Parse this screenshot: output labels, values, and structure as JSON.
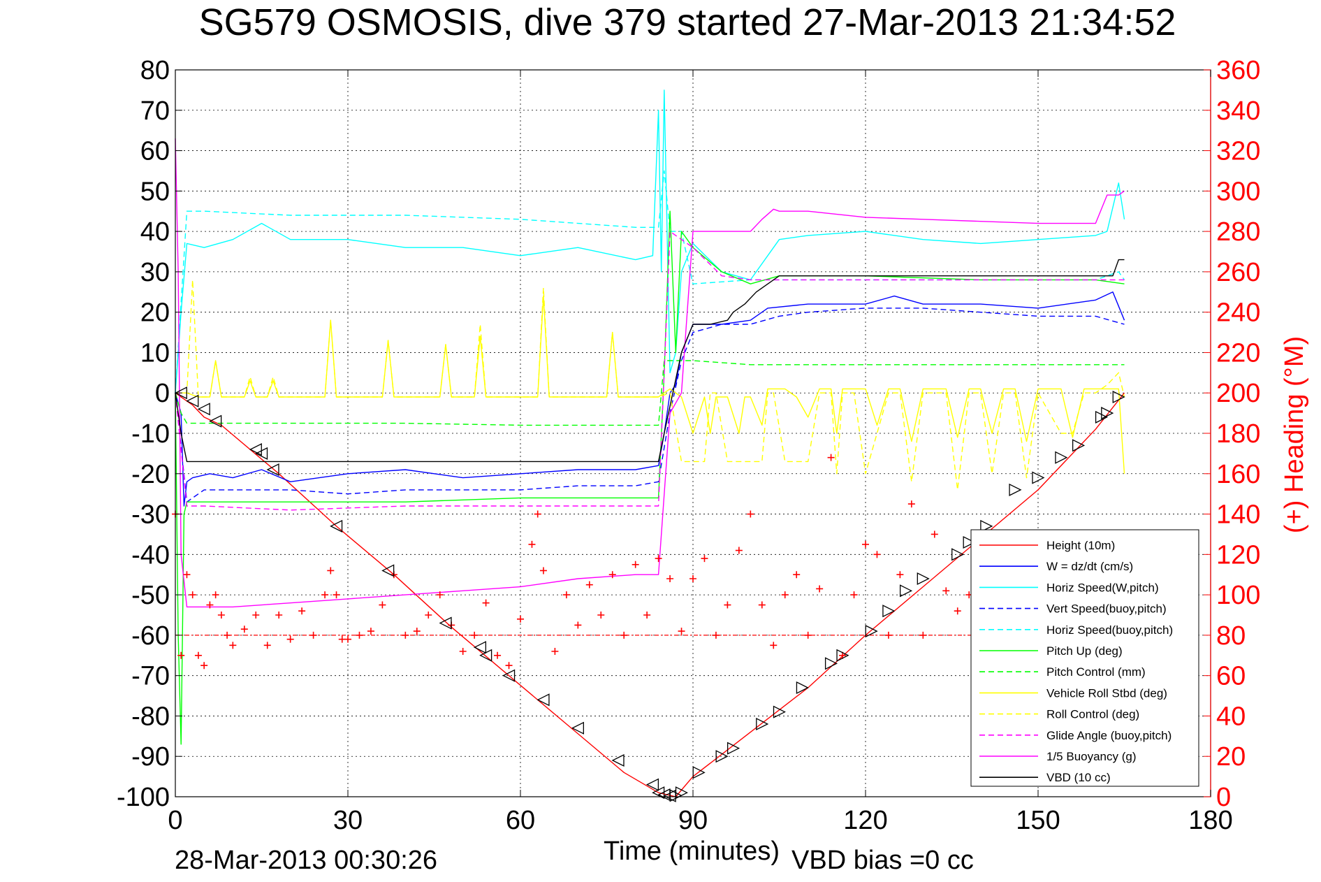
{
  "chart_data": {
    "type": "line",
    "title": "SG579 OSMOSIS, dive 379 started 27-Mar-2013 21:34:52",
    "xlabel": "Time (minutes)",
    "ylabel_right": "(+) Heading (°M)",
    "footer_left": "28-Mar-2013 00:30:26",
    "footer_right": "VBD bias =0 cc",
    "xlim": [
      0,
      180
    ],
    "ylim": [
      -100,
      80
    ],
    "ylim_right": [
      0,
      360
    ],
    "x_ticks": [
      0,
      30,
      60,
      90,
      120,
      150,
      180
    ],
    "y_ticks": [
      -100,
      -90,
      -80,
      -70,
      -60,
      -50,
      -40,
      -30,
      -20,
      -10,
      0,
      10,
      20,
      30,
      40,
      50,
      60,
      70,
      80
    ],
    "y_ticks_right": [
      0,
      20,
      40,
      60,
      80,
      100,
      120,
      140,
      160,
      180,
      200,
      220,
      240,
      260,
      280,
      300,
      320,
      340,
      360
    ],
    "grid": true,
    "legend_position": "bottom-right",
    "colors": {
      "red": "#ff0000",
      "blue": "#0000ff",
      "cyan": "#00ffff",
      "green": "#00ff00",
      "yellow": "#ffff00",
      "magenta": "#ff00ff",
      "black": "#000000"
    },
    "series": [
      {
        "name": "Height (10m)",
        "color": "#ff0000",
        "style": "solid",
        "x": [
          0,
          1,
          3,
          5,
          8,
          18,
          28,
          38,
          48,
          58,
          68,
          78,
          84,
          87,
          90,
          100,
          110,
          120,
          130,
          140,
          150,
          160,
          165
        ],
        "y": [
          0,
          -1,
          -3,
          -6,
          -8,
          -20,
          -33,
          -45,
          -58,
          -70,
          -82,
          -94,
          -99,
          -100,
          -95,
          -84,
          -73,
          -60,
          -48,
          -36,
          -24,
          -9,
          0
        ]
      },
      {
        "name": "W = dz/dt (cm/s)",
        "color": "#0000ff",
        "style": "solid",
        "x": [
          0,
          1,
          1.5,
          2,
          3,
          6,
          10,
          15,
          20,
          30,
          40,
          50,
          60,
          70,
          80,
          84,
          85,
          86,
          87,
          88,
          90,
          95,
          100,
          103,
          110,
          120,
          125,
          130,
          140,
          150,
          160,
          163,
          165
        ],
        "y": [
          0,
          -5,
          -28,
          -22,
          -21,
          -20,
          -21,
          -19,
          -22,
          -20,
          -19,
          -21,
          -20,
          -19,
          -19,
          -18,
          -10,
          0,
          2,
          10,
          17,
          17,
          18,
          21,
          22,
          22,
          24,
          22,
          22,
          21,
          23,
          25,
          18
        ]
      },
      {
        "name": "Horiz Speed(W,pitch)",
        "color": "#00ffff",
        "style": "solid",
        "x": [
          0,
          1,
          2,
          5,
          10,
          15,
          20,
          30,
          40,
          50,
          60,
          70,
          80,
          83,
          84,
          84.5,
          85,
          86,
          87,
          88,
          90,
          95,
          100,
          105,
          110,
          120,
          130,
          140,
          150,
          160,
          162,
          164,
          165
        ],
        "y": [
          0,
          20,
          37,
          36,
          38,
          42,
          38,
          38,
          36,
          36,
          34,
          36,
          33,
          34,
          70,
          30,
          75,
          5,
          10,
          30,
          37,
          30,
          28,
          38,
          39,
          40,
          38,
          37,
          38,
          39,
          40,
          52,
          43
        ]
      },
      {
        "name": "Vert Speed(buoy,pitch)",
        "color": "#0000ff",
        "style": "dashed",
        "x": [
          0,
          2,
          5,
          10,
          20,
          30,
          40,
          50,
          60,
          70,
          80,
          84,
          86,
          88,
          90,
          95,
          100,
          105,
          110,
          120,
          130,
          140,
          150,
          160,
          165
        ],
        "y": [
          0,
          -27,
          -24,
          -24,
          -24,
          -25,
          -24,
          -24,
          -24,
          -23,
          -23,
          -22,
          -5,
          8,
          15,
          17,
          17,
          19,
          20,
          21,
          21,
          20,
          19,
          19,
          17
        ]
      },
      {
        "name": "Horiz Speed(buoy,pitch)",
        "color": "#00ffff",
        "style": "dashed",
        "x": [
          0,
          2,
          5,
          20,
          40,
          60,
          80,
          84,
          85,
          86,
          88,
          90,
          100,
          110,
          120,
          140,
          160,
          164,
          165
        ],
        "y": [
          0,
          45,
          45,
          44,
          44,
          43,
          41,
          41,
          55,
          40,
          40,
          27,
          28,
          28,
          28,
          28,
          28,
          30,
          28
        ]
      },
      {
        "name": "Pitch Up (deg)",
        "color": "#00ff00",
        "style": "solid",
        "x": [
          0,
          0.5,
          1,
          1.5,
          2,
          5,
          20,
          40,
          60,
          80,
          84,
          85,
          86,
          87,
          88,
          90,
          95,
          100,
          105,
          120,
          140,
          160,
          165
        ],
        "y": [
          0,
          -60,
          -87,
          -30,
          -27,
          -27,
          -27,
          -27,
          -26,
          -26,
          -26,
          5,
          45,
          10,
          40,
          36,
          30,
          27,
          29,
          29,
          28,
          28,
          27
        ]
      },
      {
        "name": "Pitch Control (mm)",
        "color": "#00ff00",
        "style": "dashed",
        "x": [
          0,
          1,
          2,
          5,
          20,
          40,
          60,
          80,
          84,
          85,
          88,
          90,
          100,
          110,
          120,
          140,
          160,
          165
        ],
        "y": [
          0,
          -5,
          -7.5,
          -7.5,
          -7.5,
          -7.5,
          -8,
          -8,
          -8,
          8,
          8,
          8,
          7,
          7,
          7,
          7,
          7,
          7
        ]
      },
      {
        "name": "Vehicle Roll Stbd (deg)",
        "color": "#ffff00",
        "style": "solid",
        "x": [
          0,
          2,
          4,
          6,
          7,
          8,
          10,
          12,
          13,
          14,
          16,
          17,
          18,
          20,
          26,
          27,
          28,
          30,
          36,
          37,
          38,
          40,
          46,
          47,
          48,
          50,
          52,
          53,
          54,
          56,
          58,
          60,
          63,
          64,
          65,
          67,
          70,
          72,
          75,
          76,
          77,
          80,
          84,
          85,
          86,
          88,
          90,
          92,
          93,
          94,
          96,
          98,
          99,
          100,
          102,
          103,
          104,
          106,
          108,
          110,
          112,
          114,
          115,
          116,
          118,
          120,
          122,
          124,
          126,
          128,
          130,
          132,
          134,
          136,
          138,
          140,
          142,
          144,
          146,
          148,
          150,
          152,
          154,
          156,
          158,
          160,
          162,
          164,
          165
        ],
        "y": [
          0,
          0,
          -1,
          -1,
          8,
          -1,
          -1,
          -1,
          3,
          -1,
          -1,
          3,
          -1,
          -1,
          -1,
          18,
          -1,
          -1,
          -1,
          13,
          -1,
          -1,
          -1,
          12,
          -1,
          -1,
          -1,
          14,
          -1,
          -1,
          -1,
          -1,
          -1,
          24,
          -1,
          -1,
          -1,
          -1,
          -1,
          15,
          -1,
          -1,
          -1,
          0,
          1,
          -1,
          -10,
          -1,
          -10,
          -1,
          -1,
          -10,
          -1,
          -1,
          -8,
          1,
          1,
          1,
          -1,
          -6,
          1,
          1,
          -10,
          1,
          1,
          1,
          -8,
          1,
          1,
          -12,
          1,
          1,
          1,
          -11,
          1,
          1,
          -10,
          1,
          1,
          -12,
          1,
          1,
          1,
          -11,
          1,
          1,
          1,
          1,
          -20
        ]
      },
      {
        "name": "Roll Control (deg)",
        "color": "#ffff00",
        "style": "dashed",
        "x": [
          0,
          2,
          3,
          4,
          6,
          7,
          8,
          10,
          12,
          13,
          14,
          16,
          17,
          18,
          20,
          26,
          27,
          28,
          30,
          36,
          37,
          38,
          40,
          46,
          47,
          48,
          50,
          52,
          53,
          54,
          56,
          60,
          63,
          64,
          65,
          70,
          75,
          76,
          77,
          80,
          84,
          86,
          88,
          90,
          92,
          93,
          94,
          96,
          98,
          100,
          102,
          103,
          104,
          106,
          108,
          110,
          112,
          114,
          115,
          116,
          118,
          120,
          124,
          126,
          128,
          130,
          134,
          136,
          138,
          140,
          142,
          144,
          146,
          148,
          150,
          154,
          156,
          158,
          160,
          162,
          164,
          165
        ],
        "y": [
          0,
          0,
          28,
          -1,
          -1,
          8,
          -1,
          -1,
          -1,
          4,
          -1,
          -1,
          4,
          -1,
          -1,
          -1,
          18,
          -1,
          -1,
          -1,
          13,
          -1,
          -1,
          -1,
          12,
          -1,
          -1,
          -1,
          17,
          -1,
          -1,
          -1,
          -1,
          26,
          -1,
          -1,
          -1,
          15,
          -1,
          -1,
          -1,
          0,
          -17,
          -17,
          -17,
          0,
          0,
          -17,
          -17,
          -17,
          -17,
          0,
          0,
          -17,
          -17,
          -17,
          0,
          0,
          -20,
          0,
          0,
          -20,
          0,
          0,
          -22,
          0,
          0,
          -24,
          0,
          0,
          -20,
          0,
          0,
          -21,
          0,
          -10,
          -10,
          0,
          0,
          2,
          5,
          -1
        ]
      },
      {
        "name": "Glide Angle (buoy,pitch)",
        "color": "#ff00ff",
        "style": "dashed",
        "x": [
          0,
          2,
          5,
          20,
          40,
          60,
          80,
          84,
          85,
          86,
          88,
          90,
          95,
          100,
          110,
          120,
          140,
          160,
          165
        ],
        "y": [
          0,
          -28,
          -28,
          -29,
          -28,
          -28,
          -28,
          -28,
          5,
          40,
          38,
          36,
          29,
          28,
          28,
          28,
          28,
          28,
          28
        ]
      },
      {
        "name": "1/5 Buoyancy (g)",
        "color": "#ff00ff",
        "style": "solid",
        "x": [
          0,
          0.5,
          1,
          2,
          3,
          10,
          20,
          30,
          40,
          50,
          60,
          70,
          80,
          84,
          86,
          88,
          90,
          100,
          102,
          104,
          105,
          110,
          120,
          130,
          140,
          150,
          160,
          162,
          164,
          165
        ],
        "y": [
          63,
          30,
          -40,
          -53,
          -53,
          -53,
          -52,
          -51,
          -50,
          -49,
          -48,
          -46,
          -45,
          -45,
          -5,
          0,
          40,
          40,
          43,
          45.5,
          45,
          45,
          43.5,
          43,
          42.5,
          42,
          42,
          49,
          49,
          50
        ]
      },
      {
        "name": "VBD (10 cc)",
        "color": "#000000",
        "style": "solid",
        "x": [
          0,
          1,
          2,
          5,
          20,
          40,
          60,
          80,
          84,
          85,
          88,
          90,
          93,
          96,
          97,
          99,
          101,
          104,
          105,
          120,
          140,
          160,
          163,
          164,
          165
        ],
        "y": [
          0,
          -10,
          -17,
          -17,
          -17,
          -17,
          -17,
          -17,
          -17,
          -10,
          10,
          17,
          17,
          18,
          20,
          22,
          25,
          28,
          29,
          29,
          29,
          29,
          29,
          33,
          33
        ]
      }
    ],
    "heading_target": 80,
    "heading_points": {
      "color": "#ff0000",
      "x": [
        0,
        1,
        2,
        3,
        4,
        5,
        6,
        7,
        8,
        9,
        10,
        12,
        14,
        16,
        18,
        20,
        22,
        24,
        26,
        27,
        28,
        29,
        30,
        32,
        34,
        36,
        38,
        40,
        42,
        44,
        46,
        48,
        50,
        52,
        54,
        56,
        58,
        60,
        62,
        63,
        64,
        66,
        68,
        70,
        72,
        74,
        76,
        78,
        80,
        82,
        84,
        86,
        88,
        90,
        92,
        94,
        96,
        98,
        100,
        102,
        104,
        106,
        108,
        110,
        112,
        114,
        116,
        118,
        120,
        122,
        124,
        126,
        128,
        130,
        132,
        134,
        136,
        138,
        140,
        142,
        144
      ],
      "y": [
        140,
        70,
        110,
        100,
        70,
        65,
        95,
        100,
        90,
        80,
        75,
        83,
        90,
        75,
        90,
        78,
        92,
        80,
        100,
        112,
        100,
        78,
        78,
        80,
        82,
        95,
        110,
        80,
        82,
        90,
        100,
        85,
        72,
        80,
        96,
        70,
        65,
        88,
        125,
        140,
        112,
        72,
        100,
        85,
        105,
        90,
        110,
        80,
        115,
        90,
        118,
        108,
        82,
        108,
        118,
        80,
        95,
        122,
        140,
        95,
        75,
        100,
        110,
        80,
        103,
        168,
        70,
        100,
        125,
        120,
        80,
        110,
        145,
        80,
        130,
        102,
        92,
        100,
        120,
        80,
        95
      ]
    },
    "depth_markers": {
      "color": "#000000",
      "x": [
        1,
        3,
        5,
        7,
        14,
        15,
        17,
        28,
        37,
        47,
        53,
        54,
        58,
        64,
        70,
        77,
        83,
        84,
        85,
        86,
        87,
        88,
        91,
        95,
        97,
        102,
        105,
        109,
        114,
        116,
        121,
        124,
        127,
        130,
        136,
        138,
        141,
        146,
        150,
        154,
        157,
        161,
        162,
        164
      ],
      "y": [
        0,
        -2,
        -4,
        -7,
        -14,
        -15,
        -19,
        -33,
        -44,
        -57,
        -63,
        -65,
        -70,
        -76,
        -83,
        -91,
        -97,
        -99,
        -99.5,
        -99.8,
        -99.7,
        -99,
        -94,
        -90,
        -88,
        -82,
        -79,
        -73,
        -67,
        -65,
        -59,
        -54,
        -49,
        -46,
        -40,
        -37,
        -33,
        -24,
        -21,
        -16,
        -13,
        -6,
        -5,
        -1
      ]
    }
  }
}
